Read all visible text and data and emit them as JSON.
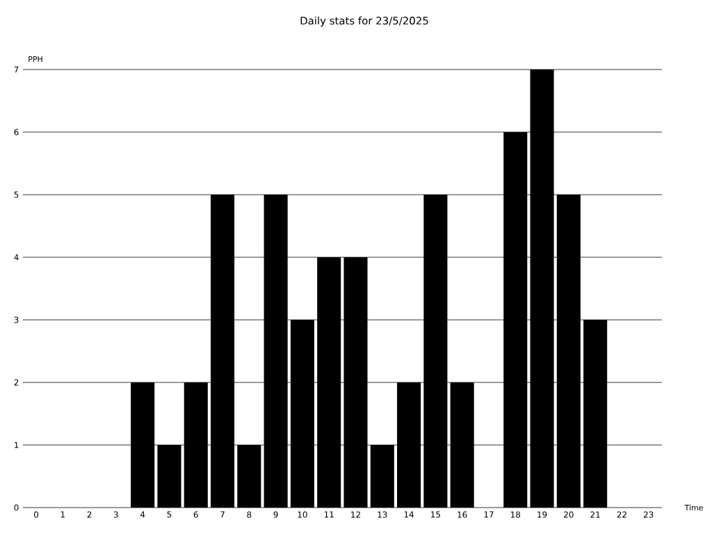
{
  "chart_data": {
    "type": "bar",
    "title": "Daily stats for 23/5/2025",
    "xlabel": "Time",
    "ylabel": "PPH",
    "categories": [
      "0",
      "1",
      "2",
      "3",
      "4",
      "5",
      "6",
      "7",
      "8",
      "9",
      "10",
      "11",
      "12",
      "13",
      "14",
      "15",
      "16",
      "17",
      "18",
      "19",
      "20",
      "21",
      "22",
      "23"
    ],
    "values": [
      0,
      0,
      0,
      0,
      2,
      1,
      2,
      5,
      1,
      5,
      3,
      4,
      4,
      1,
      2,
      5,
      2,
      0,
      6,
      7,
      5,
      3,
      0,
      0
    ],
    "color": "#000000",
    "ylim": [
      0,
      7
    ],
    "yticks": [
      0,
      1,
      2,
      3,
      4,
      5,
      6,
      7
    ],
    "grid": "y"
  }
}
